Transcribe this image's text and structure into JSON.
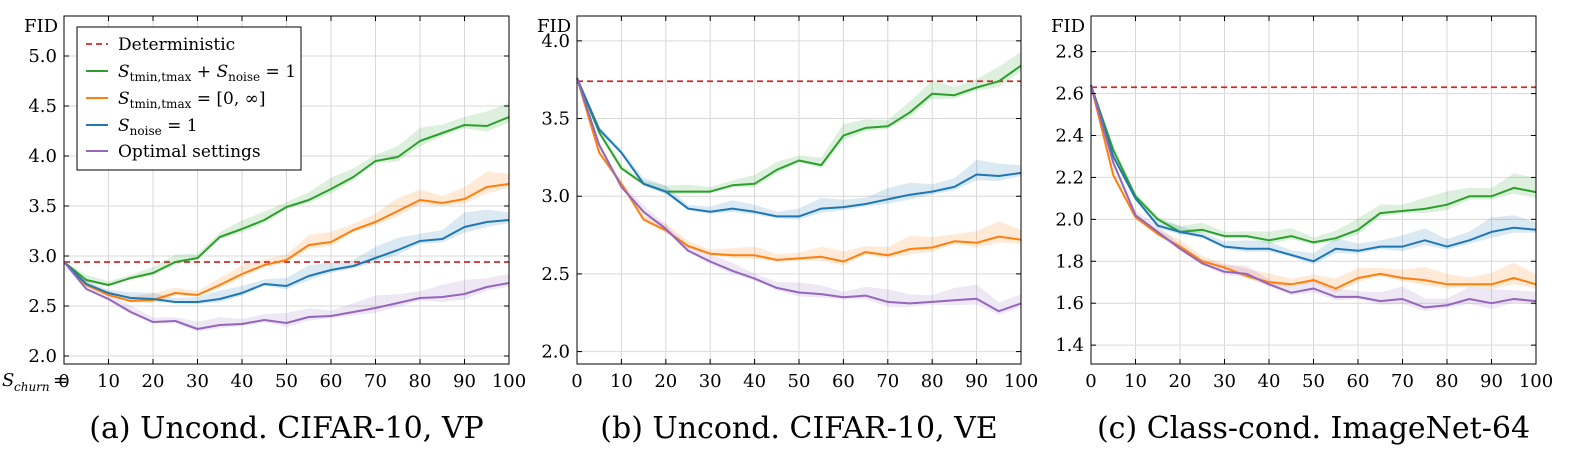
{
  "figure": {
    "xaxis_prefix": "S",
    "xaxis_sub": "churn",
    "legend": {
      "deterministic": "Deterministic",
      "tminmax_noise": {
        "main1": "S",
        "sub1": "tmin,tmax",
        "plus": " + ",
        "main2": "S",
        "sub2": "noise",
        "rest": " = 1"
      },
      "tminmax_range": {
        "main": "S",
        "sub": "tmin,tmax",
        "rest": " = [0, ∞]"
      },
      "noise_one": {
        "main": "S",
        "sub": "noise",
        "rest": " = 1"
      },
      "optimal": "Optimal settings"
    }
  },
  "colors": {
    "deterministic": "#d62728",
    "tminmax_noise": "#2ca02c",
    "tminmax_range": "#ff7f0e",
    "noise_one": "#1f77b4",
    "optimal": "#9467bd"
  },
  "chart_data": [
    {
      "type": "line",
      "title": "(a) Uncond. CIFAR-10, VP",
      "ylabel": "FID",
      "xlim": [
        0,
        100
      ],
      "ylim": [
        1.92,
        5.4
      ],
      "yticks": [
        "2.0",
        "2.5",
        "3.0",
        "3.5",
        "4.0",
        "4.5",
        "5.0"
      ],
      "xticks": [
        "0",
        "10",
        "20",
        "30",
        "40",
        "50",
        "60",
        "70",
        "80",
        "90",
        "100"
      ],
      "deterministic": 2.94,
      "x": [
        0,
        5,
        10,
        15,
        20,
        25,
        30,
        35,
        40,
        45,
        50,
        55,
        60,
        65,
        70,
        75,
        80,
        85,
        90,
        95,
        100
      ],
      "series": [
        {
          "key": "tminmax_noise",
          "values": [
            2.94,
            2.76,
            2.71,
            2.78,
            2.83,
            2.94,
            2.98,
            3.19,
            3.27,
            3.36,
            3.49,
            3.56,
            3.67,
            3.79,
            3.95,
            3.99,
            4.15,
            4.23,
            4.31,
            4.3,
            4.39
          ]
        },
        {
          "key": "tminmax_range",
          "values": [
            2.94,
            2.71,
            2.61,
            2.55,
            2.56,
            2.63,
            2.61,
            2.71,
            2.82,
            2.91,
            2.96,
            3.11,
            3.14,
            3.26,
            3.34,
            3.45,
            3.56,
            3.53,
            3.57,
            3.69,
            3.72
          ]
        },
        {
          "key": "noise_one",
          "values": [
            2.94,
            2.72,
            2.63,
            2.58,
            2.57,
            2.54,
            2.54,
            2.57,
            2.63,
            2.72,
            2.7,
            2.8,
            2.86,
            2.9,
            2.98,
            3.06,
            3.15,
            3.17,
            3.29,
            3.34,
            3.36
          ]
        },
        {
          "key": "optimal",
          "values": [
            2.94,
            2.67,
            2.57,
            2.44,
            2.34,
            2.35,
            2.27,
            2.31,
            2.32,
            2.36,
            2.33,
            2.39,
            2.4,
            2.44,
            2.48,
            2.53,
            2.58,
            2.59,
            2.62,
            2.69,
            2.73
          ]
        }
      ]
    },
    {
      "type": "line",
      "title": "(b) Uncond. CIFAR-10, VE",
      "ylabel": "FID",
      "xlim": [
        0,
        100
      ],
      "ylim": [
        1.92,
        4.16
      ],
      "yticks": [
        "2.0",
        "2.5",
        "3.0",
        "3.5",
        "4.0"
      ],
      "xticks": [
        "0",
        "10",
        "20",
        "30",
        "40",
        "50",
        "60",
        "70",
        "80",
        "90",
        "100"
      ],
      "deterministic": 3.74,
      "x": [
        0,
        5,
        10,
        15,
        20,
        25,
        30,
        35,
        40,
        45,
        50,
        55,
        60,
        65,
        70,
        75,
        80,
        85,
        90,
        95,
        100
      ],
      "series": [
        {
          "key": "tminmax_noise",
          "values": [
            3.76,
            3.41,
            3.18,
            3.08,
            3.03,
            3.03,
            3.03,
            3.07,
            3.08,
            3.17,
            3.23,
            3.2,
            3.39,
            3.44,
            3.45,
            3.54,
            3.66,
            3.65,
            3.7,
            3.74,
            3.84
          ]
        },
        {
          "key": "tminmax_range",
          "values": [
            3.76,
            3.28,
            3.08,
            2.85,
            2.78,
            2.68,
            2.63,
            2.62,
            2.62,
            2.59,
            2.6,
            2.61,
            2.58,
            2.64,
            2.62,
            2.66,
            2.67,
            2.71,
            2.7,
            2.74,
            2.72
          ]
        },
        {
          "key": "noise_one",
          "values": [
            3.76,
            3.43,
            3.28,
            3.08,
            3.03,
            2.92,
            2.9,
            2.92,
            2.9,
            2.87,
            2.87,
            2.92,
            2.93,
            2.95,
            2.98,
            3.01,
            3.03,
            3.06,
            3.14,
            3.13,
            3.15
          ]
        },
        {
          "key": "optimal",
          "values": [
            3.76,
            3.33,
            3.06,
            2.9,
            2.79,
            2.65,
            2.58,
            2.52,
            2.47,
            2.41,
            2.38,
            2.37,
            2.35,
            2.36,
            2.32,
            2.31,
            2.32,
            2.33,
            2.34,
            2.26,
            2.31
          ]
        }
      ]
    },
    {
      "type": "line",
      "title": "(c) Class-cond. ImageNet-64",
      "ylabel": "FID",
      "xlim": [
        0,
        100
      ],
      "ylim": [
        1.31,
        2.97
      ],
      "yticks": [
        "1.4",
        "1.6",
        "1.8",
        "2.0",
        "2.2",
        "2.4",
        "2.6",
        "2.8"
      ],
      "xticks": [
        "0",
        "10",
        "20",
        "30",
        "40",
        "50",
        "60",
        "70",
        "80",
        "90",
        "100"
      ],
      "deterministic": 2.63,
      "x": [
        0,
        5,
        10,
        15,
        20,
        25,
        30,
        35,
        40,
        45,
        50,
        55,
        60,
        65,
        70,
        75,
        80,
        85,
        90,
        95,
        100
      ],
      "series": [
        {
          "key": "tminmax_noise",
          "values": [
            2.64,
            2.33,
            2.11,
            2.0,
            1.94,
            1.95,
            1.92,
            1.92,
            1.9,
            1.92,
            1.89,
            1.91,
            1.95,
            2.03,
            2.04,
            2.05,
            2.07,
            2.11,
            2.11,
            2.15,
            2.13
          ]
        },
        {
          "key": "tminmax_range",
          "values": [
            2.64,
            2.21,
            2.01,
            1.93,
            1.87,
            1.8,
            1.77,
            1.73,
            1.7,
            1.69,
            1.71,
            1.67,
            1.72,
            1.74,
            1.72,
            1.71,
            1.69,
            1.69,
            1.69,
            1.72,
            1.69
          ]
        },
        {
          "key": "noise_one",
          "values": [
            2.64,
            2.3,
            2.1,
            1.97,
            1.94,
            1.92,
            1.87,
            1.86,
            1.86,
            1.83,
            1.8,
            1.86,
            1.85,
            1.87,
            1.87,
            1.9,
            1.87,
            1.9,
            1.94,
            1.96,
            1.95
          ]
        },
        {
          "key": "optimal",
          "values": [
            2.64,
            2.27,
            2.02,
            1.94,
            1.86,
            1.79,
            1.75,
            1.74,
            1.69,
            1.65,
            1.67,
            1.63,
            1.63,
            1.61,
            1.62,
            1.58,
            1.59,
            1.62,
            1.6,
            1.62,
            1.61
          ]
        }
      ]
    }
  ]
}
